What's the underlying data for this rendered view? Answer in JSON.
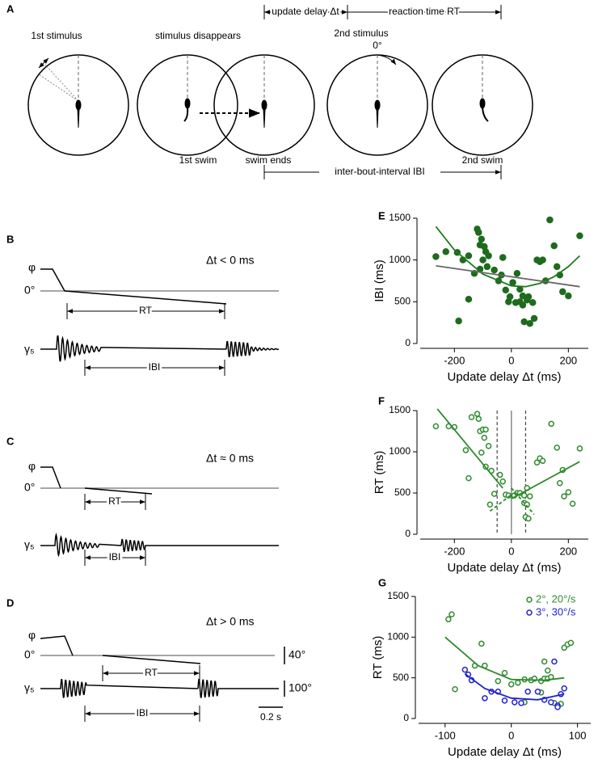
{
  "panel_labels": [
    "A",
    "B",
    "C",
    "D",
    "E",
    "F",
    "G"
  ],
  "diagram": {
    "update_delay": "update delay Δt",
    "reaction_time": "reaction time RT",
    "first_stimulus": "1st stimulus",
    "stimulus_disappears": "stimulus disappears",
    "second_stimulus": "2nd stimulus",
    "zero_deg": "0°",
    "first_swim": "1st swim",
    "swim_ends": "swim ends",
    "second_swim": "2nd swim",
    "ibi": "inter-bout-interval IBI"
  },
  "traces": [
    {
      "condition": "Δt < 0 ms",
      "phi": "φ",
      "zero": "0°",
      "gamma": "γ₅",
      "rt": "RT",
      "ibi": "IBI"
    },
    {
      "condition": "Δt ≈ 0 ms",
      "phi": "φ",
      "zero": "0°",
      "gamma": "γ₅",
      "rt": "RT",
      "ibi": "IBI"
    },
    {
      "condition": "Δt > 0 ms",
      "phi": "φ",
      "zero": "0°",
      "gamma": "γ₅",
      "rt": "RT",
      "ibi": "IBI"
    }
  ],
  "scale_bars": {
    "angle": "40°",
    "gamma": "100°",
    "time": "0.2 s"
  },
  "chart_data": [
    {
      "type": "scatter",
      "ylabel": "IBI (ms)",
      "xlabel": "Update delay Δt (ms)",
      "xlim": [
        -320,
        270
      ],
      "ylim": [
        0,
        1500
      ],
      "xticks": [
        -200,
        0,
        200
      ],
      "yticks": [
        0,
        500,
        1000,
        1500
      ],
      "series": [
        {
          "color": "#1e6b1e",
          "marker": "filled",
          "x": [
            -265,
            -230,
            -190,
            -170,
            -150,
            -120,
            -115,
            -110,
            -105,
            -95,
            -90,
            -80,
            -100,
            -110,
            -130,
            -150,
            -85,
            -60,
            -45,
            -35,
            -30,
            -20,
            -10,
            5,
            15,
            20,
            30,
            40,
            40,
            55,
            60,
            65,
            45,
            75,
            80,
            90,
            100,
            110,
            120,
            135,
            150,
            160,
            170,
            180,
            200,
            240,
            -185,
            -5,
            30
          ],
          "values": [
            1040,
            1100,
            1090,
            1000,
            1050,
            1370,
            1330,
            1180,
            1250,
            1160,
            1100,
            1050,
            1000,
            890,
            840,
            530,
            920,
            880,
            750,
            820,
            1030,
            640,
            500,
            730,
            490,
            840,
            500,
            570,
            460,
            520,
            560,
            240,
            260,
            490,
            300,
            1000,
            980,
            1000,
            750,
            1480,
            1170,
            920,
            820,
            620,
            570,
            1290,
            270,
            560,
            650
          ]
        },
        {
          "type": "line",
          "color": "#1e7a1e",
          "x": [
            -265,
            -200,
            -100,
            0,
            50,
            100,
            150,
            200,
            240
          ],
          "values": [
            1400,
            1120,
            830,
            690,
            680,
            720,
            800,
            920,
            1050
          ]
        },
        {
          "type": "line",
          "color": "#666666",
          "x": [
            -265,
            240
          ],
          "values": [
            930,
            680
          ]
        }
      ]
    },
    {
      "type": "scatter",
      "ylabel": "RT (ms)",
      "xlabel": "Update delay Δt (ms)",
      "xlim": [
        -320,
        270
      ],
      "ylim": [
        0,
        1500
      ],
      "xticks": [
        -200,
        0,
        200
      ],
      "yticks": [
        0,
        500,
        1000,
        1500
      ],
      "reference_lines": [
        {
          "x": -50,
          "dashed": true
        },
        {
          "x": 0,
          "dashed": false
        },
        {
          "x": 50,
          "dashed": true
        }
      ],
      "series": [
        {
          "color": "#2e8b2e",
          "marker": "open",
          "x": [
            -265,
            -220,
            -200,
            -160,
            -150,
            -140,
            -120,
            -115,
            -110,
            -100,
            -95,
            -90,
            -105,
            -80,
            -90,
            -70,
            -60,
            -40,
            -30,
            -20,
            -10,
            10,
            20,
            -75,
            30,
            45,
            45,
            50,
            55,
            60,
            55,
            65,
            90,
            100,
            110,
            160,
            140,
            170,
            180,
            200,
            215,
            240,
            185
          ],
          "values": [
            1310,
            1310,
            1300,
            1020,
            680,
            1420,
            1460,
            1400,
            1250,
            1270,
            1170,
            1270,
            990,
            1070,
            820,
            770,
            490,
            720,
            640,
            480,
            470,
            470,
            500,
            360,
            500,
            470,
            380,
            210,
            360,
            190,
            560,
            460,
            870,
            920,
            890,
            1050,
            1340,
            620,
            780,
            510,
            370,
            1040,
            460
          ]
        },
        {
          "type": "line",
          "color": "#2e8b2e",
          "x": [
            -260,
            -30
          ],
          "values": [
            1520,
            560
          ]
        },
        {
          "type": "line",
          "color": "#2e8b2e",
          "x": [
            0,
            240
          ],
          "values": [
            430,
            880
          ]
        },
        {
          "type": "line",
          "color": "#2e8b2e",
          "dashed": true,
          "x": [
            -75,
            0
          ],
          "values": [
            280,
            480
          ]
        },
        {
          "type": "line",
          "color": "#2e8b2e",
          "dashed": true,
          "x": [
            0,
            80
          ],
          "values": [
            560,
            240
          ]
        }
      ]
    },
    {
      "type": "scatter",
      "ylabel": "RT (ms)",
      "xlabel": "Update delay Δt (ms)",
      "xlim": [
        -140,
        120
      ],
      "ylim": [
        0,
        1500
      ],
      "xticks": [
        -100,
        0,
        100
      ],
      "yticks": [
        0,
        500,
        1000,
        1500
      ],
      "series": [
        {
          "name": "2°, 20°/s",
          "color": "#2e8b2e",
          "marker": "open",
          "x": [
            -95,
            -90,
            -85,
            -55,
            -45,
            -40,
            -20,
            -10,
            0,
            10,
            20,
            30,
            35,
            45,
            45,
            50,
            55,
            60,
            65,
            75,
            80,
            85,
            90,
            55,
            50,
            20
          ],
          "values": [
            1220,
            1280,
            360,
            650,
            920,
            650,
            460,
            560,
            420,
            440,
            480,
            470,
            490,
            460,
            320,
            490,
            490,
            510,
            190,
            180,
            870,
            910,
            930,
            590,
            700,
            200
          ]
        },
        {
          "name": "3°, 30°/s",
          "color": "#2222cc",
          "marker": "open",
          "x": [
            -70,
            -65,
            -40,
            -30,
            -20,
            -10,
            5,
            15,
            25,
            40,
            50,
            60,
            65,
            70,
            70,
            75,
            80,
            -60
          ],
          "values": [
            600,
            540,
            250,
            330,
            330,
            220,
            200,
            190,
            330,
            330,
            230,
            200,
            700,
            160,
            140,
            300,
            370,
            470
          ]
        },
        {
          "type": "line",
          "color": "#2e8b2e",
          "x": [
            -100,
            -50,
            0,
            50,
            80
          ],
          "values": [
            1000,
            650,
            480,
            470,
            500
          ]
        },
        {
          "type": "line",
          "color": "#2222cc",
          "x": [
            -70,
            -40,
            0,
            40,
            80
          ],
          "values": [
            550,
            370,
            250,
            230,
            300
          ]
        }
      ]
    }
  ]
}
